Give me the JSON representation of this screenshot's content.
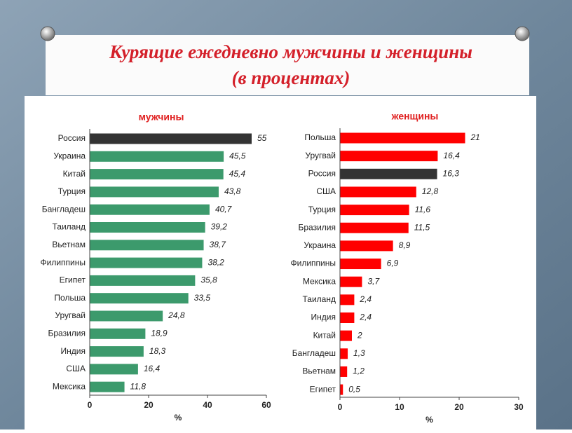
{
  "slide_title": [
    "Курящие ежедневно мужчины и женщины",
    "(в процентах)"
  ],
  "chart_data": [
    {
      "type": "bar",
      "orientation": "horizontal",
      "title": "мужчины",
      "categories": [
        "Россия",
        "Украина",
        "Китай",
        "Турция",
        "Бангладеш",
        "Таиланд",
        "Вьетнам",
        "Филиппины",
        "Египет",
        "Польша",
        "Уругвай",
        "Бразилия",
        "Индия",
        "США",
        "Мексика"
      ],
      "values": [
        55,
        45.5,
        45.4,
        43.8,
        40.7,
        39.2,
        38.7,
        38.2,
        35.8,
        33.5,
        24.8,
        18.9,
        18.3,
        16.4,
        11.8
      ],
      "value_labels": [
        "55",
        "45,5",
        "45,4",
        "43,8",
        "40,7",
        "39,2",
        "38,7",
        "38,2",
        "35,8",
        "33,5",
        "24,8",
        "18,9",
        "18,3",
        "16,4",
        "11,8"
      ],
      "colors": [
        "#333333",
        "#3c9a6c",
        "#3c9a6c",
        "#3c9a6c",
        "#3c9a6c",
        "#3c9a6c",
        "#3c9a6c",
        "#3c9a6c",
        "#3c9a6c",
        "#3c9a6c",
        "#3c9a6c",
        "#3c9a6c",
        "#3c9a6c",
        "#3c9a6c",
        "#3c9a6c"
      ],
      "xlim": [
        0,
        60
      ],
      "xticks": [
        0,
        20,
        40,
        60
      ],
      "xlabel": "%"
    },
    {
      "type": "bar",
      "orientation": "horizontal",
      "title": "женщины",
      "categories": [
        "Польша",
        "Уругвай",
        "Россия",
        "США",
        "Турция",
        "Бразилия",
        "Украина",
        "Филиппины",
        "Мексика",
        "Таиланд",
        "Индия",
        "Китай",
        "Бангладеш",
        "Вьетнам",
        "Египет"
      ],
      "values": [
        21,
        16.4,
        16.3,
        12.8,
        11.6,
        11.5,
        8.9,
        6.9,
        3.7,
        2.4,
        2.4,
        2,
        1.3,
        1.2,
        0.5
      ],
      "value_labels": [
        "21",
        "16,4",
        "16,3",
        "12,8",
        "11,6",
        "11,5",
        "8,9",
        "6,9",
        "3,7",
        "2,4",
        "2,4",
        "2",
        "1,3",
        "1,2",
        "0,5"
      ],
      "colors": [
        "#ff0000",
        "#ff0000",
        "#333333",
        "#ff0000",
        "#ff0000",
        "#ff0000",
        "#ff0000",
        "#ff0000",
        "#ff0000",
        "#ff0000",
        "#ff0000",
        "#ff0000",
        "#ff0000",
        "#ff0000",
        "#ff0000"
      ],
      "xlim": [
        0,
        30
      ],
      "xticks": [
        0,
        10,
        20,
        30
      ],
      "xlabel": "%"
    }
  ]
}
